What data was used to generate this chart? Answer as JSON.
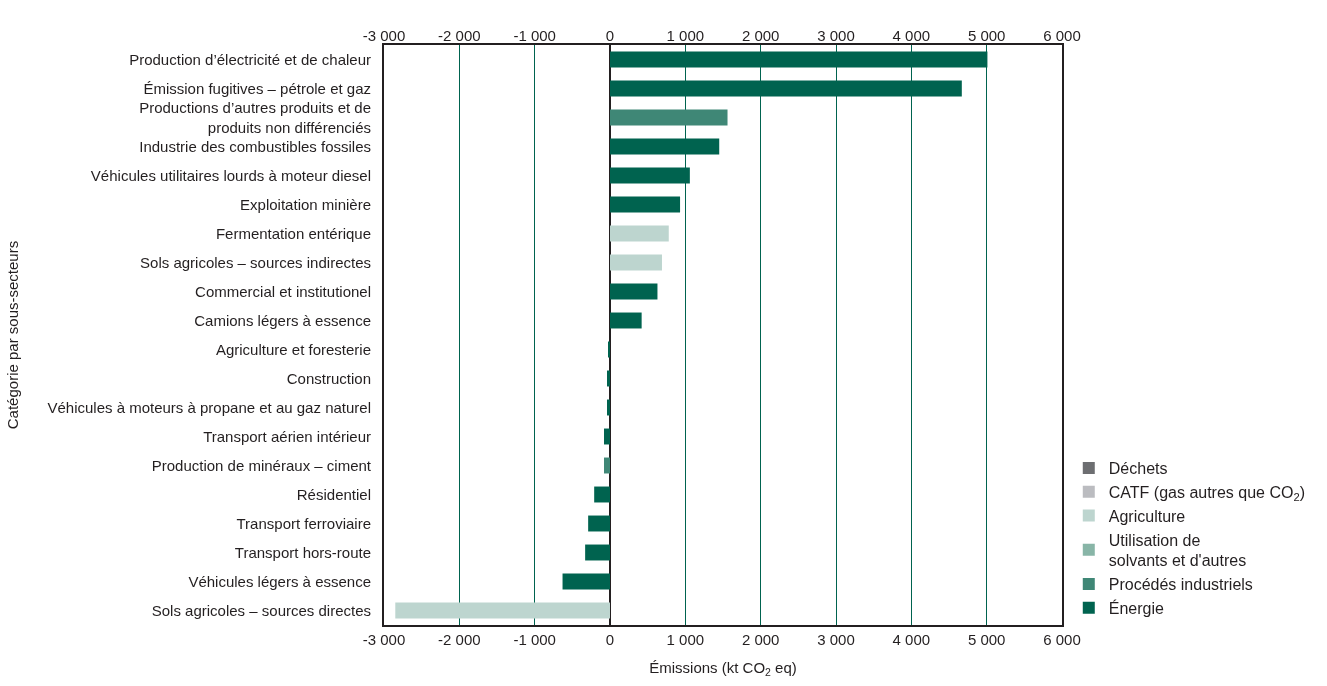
{
  "chart_data": {
    "type": "bar",
    "orientation": "horizontal",
    "stacked": true,
    "xlabel": "Émissions (kt CO$_{2}$ eq)",
    "ylabel": "Catégorie par sous-secteurs",
    "categories": [
      "Production d’électricité et de chaleur",
      "Émission fugitives – pétrole et gaz",
      "Productions d’autres produits et de\nproduits non différenciés",
      "Industrie des combustibles fossiles",
      "Véhicules utilitaires lourds à moteur diesel",
      "Exploitation minière",
      "Fermentation entérique",
      "Sols agricoles – sources indirectes",
      "Commercial et institutionel",
      "Camions légers à essence",
      "Agriculture et foresterie",
      "Construction",
      "Véhicules à moteurs à propane et au gaz naturel",
      "Transport aérien intérieur",
      "Production de minéraux – ciment",
      "Résidentiel",
      "Transport ferroviaire",
      "Transport hors-route",
      "Véhicules légers à essence",
      "Sols agricoles – sources directes"
    ],
    "series": [
      {
        "name": "Énergie",
        "color": "#00634f",
        "values": [
          5010,
          4670,
          null,
          1450,
          1060,
          930,
          null,
          null,
          630,
          420,
          -20,
          -40,
          -40,
          -80,
          null,
          -210,
          -290,
          -330,
          -630,
          null
        ]
      },
      {
        "name": "Procédés industriels",
        "color": "#3f8776",
        "values": [
          null,
          null,
          1560,
          null,
          null,
          null,
          null,
          null,
          null,
          null,
          null,
          null,
          null,
          null,
          -80,
          null,
          null,
          null,
          null,
          null
        ]
      },
      {
        "name": "Utilisation de\nsolvants et d'autres",
        "color": "#88b5a7",
        "values": [
          null,
          null,
          null,
          null,
          null,
          null,
          null,
          null,
          null,
          null,
          null,
          null,
          null,
          null,
          null,
          null,
          null,
          null,
          null,
          null
        ]
      },
      {
        "name": "Agriculture",
        "color": "#bdd5cf",
        "values": [
          null,
          null,
          null,
          null,
          null,
          null,
          780,
          690,
          null,
          null,
          null,
          null,
          null,
          null,
          null,
          null,
          null,
          null,
          null,
          -2850
        ]
      },
      {
        "name": "CATF (gas autres que CO$_{2}$)",
        "color": "#bbbcc0",
        "values": [
          null,
          null,
          null,
          null,
          null,
          null,
          null,
          null,
          null,
          null,
          null,
          null,
          null,
          null,
          null,
          null,
          null,
          null,
          null,
          null
        ]
      },
      {
        "name": "Déchets",
        "color": "#6d6e71",
        "values": [
          null,
          null,
          null,
          null,
          null,
          null,
          null,
          null,
          null,
          null,
          null,
          null,
          null,
          null,
          null,
          null,
          null,
          null,
          null,
          null
        ]
      }
    ],
    "xlim": [
      -3000,
      6000
    ],
    "xticks": [
      {
        "value": -3000,
        "label": "-3 000"
      },
      {
        "value": -2000,
        "label": "-2 000"
      },
      {
        "value": -1000,
        "label": "-1 000"
      },
      0,
      {
        "value": 1000,
        "label": "1 000"
      },
      {
        "value": 2000,
        "label": "2 000"
      },
      {
        "value": 3000,
        "label": "3 000"
      },
      {
        "value": 4000,
        "label": "4 000"
      },
      {
        "value": 5000,
        "label": "5 000"
      },
      {
        "value": 6000,
        "label": "6 000"
      }
    ],
    "x2lim": [
      -3000,
      6000
    ],
    "x2ticks": [
      {
        "value": -3000,
        "label": "-3 000"
      },
      {
        "value": -2000,
        "label": "-2 000"
      },
      {
        "value": -1000,
        "label": "-1 000"
      },
      0,
      {
        "value": 1000,
        "label": "1 000"
      },
      {
        "value": 2000,
        "label": "2 000"
      },
      {
        "value": 3000,
        "label": "3 000"
      },
      {
        "value": 4000,
        "label": "4 000"
      },
      {
        "value": 5000,
        "label": "5 000"
      },
      {
        "value": 6000,
        "label": "6 000"
      }
    ],
    "grid": "x",
    "legend": "bottom right"
  }
}
